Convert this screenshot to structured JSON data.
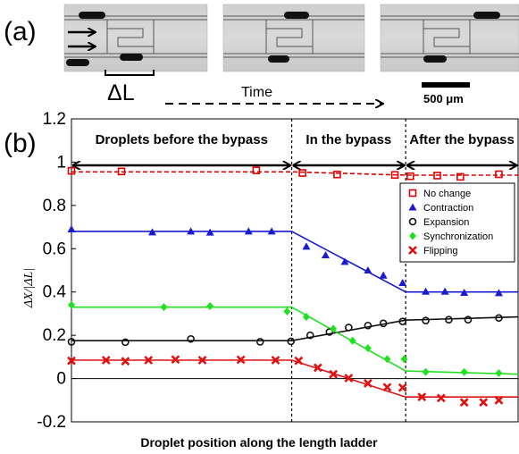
{
  "panel_a": {
    "label": "(a)",
    "delta_label": "ΔL",
    "time_label": "Time",
    "scalebar_label": "500 μm"
  },
  "panel_b": {
    "label": "(b)"
  },
  "chart_data": {
    "type": "scatter",
    "ylabel": "ΔX/|ΔL|",
    "xlabel": "Droplet position along the length  ladder",
    "ylim": [
      -0.2,
      1.2
    ],
    "yticks": [
      "1.2",
      "1",
      "0.8",
      "0.6",
      "0.4",
      "0.2",
      "0",
      "-0.2"
    ],
    "xlim": [
      0,
      580
    ],
    "regions": [
      {
        "label": "Droplets before the bypass",
        "x_start": 0,
        "x_end": 286
      },
      {
        "label": "In the bypass",
        "x_start": 286,
        "x_end": 434
      },
      {
        "label": "After the bypass",
        "x_start": 434,
        "x_end": 580
      }
    ],
    "series": [
      {
        "name": "No change",
        "color": "#e00000",
        "marker": "square",
        "line_dashed": true,
        "line": [
          [
            0,
            0.955
          ],
          [
            286,
            0.955
          ],
          [
            434,
            0.94
          ],
          [
            580,
            0.94
          ]
        ],
        "points": [
          [
            0,
            0.96
          ],
          [
            65,
            0.957
          ],
          [
            240,
            0.962
          ],
          [
            300,
            0.95
          ],
          [
            345,
            0.943
          ],
          [
            420,
            0.941
          ],
          [
            440,
            0.935
          ],
          [
            475,
            0.938
          ],
          [
            505,
            0.932
          ],
          [
            555,
            0.944
          ]
        ]
      },
      {
        "name": "Contraction",
        "color": "#1a1ad0",
        "marker": "triangle",
        "line_dashed": false,
        "line": [
          [
            0,
            0.68
          ],
          [
            286,
            0.68
          ],
          [
            434,
            0.4
          ],
          [
            580,
            0.4
          ]
        ],
        "points": [
          [
            0,
            0.69
          ],
          [
            105,
            0.676
          ],
          [
            155,
            0.68
          ],
          [
            180,
            0.675
          ],
          [
            230,
            0.68
          ],
          [
            260,
            0.68
          ],
          [
            305,
            0.61
          ],
          [
            330,
            0.57
          ],
          [
            355,
            0.54
          ],
          [
            385,
            0.5
          ],
          [
            405,
            0.476
          ],
          [
            430,
            0.442
          ],
          [
            460,
            0.402
          ],
          [
            485,
            0.402
          ],
          [
            510,
            0.397
          ],
          [
            555,
            0.395
          ]
        ]
      },
      {
        "name": "Expansion",
        "color": "#111111",
        "marker": "circle",
        "line_dashed": false,
        "line": [
          [
            0,
            0.175
          ],
          [
            286,
            0.175
          ],
          [
            434,
            0.27
          ],
          [
            580,
            0.285
          ]
        ],
        "points": [
          [
            0,
            0.17
          ],
          [
            70,
            0.168
          ],
          [
            155,
            0.183
          ],
          [
            245,
            0.17
          ],
          [
            285,
            0.172
          ],
          [
            310,
            0.2
          ],
          [
            335,
            0.215
          ],
          [
            360,
            0.236
          ],
          [
            385,
            0.245
          ],
          [
            405,
            0.255
          ],
          [
            430,
            0.264
          ],
          [
            460,
            0.268
          ],
          [
            490,
            0.272
          ],
          [
            515,
            0.272
          ],
          [
            555,
            0.28
          ]
        ]
      },
      {
        "name": "Synchronization",
        "color": "#20e020",
        "marker": "diamond",
        "line_dashed": false,
        "line": [
          [
            0,
            0.33
          ],
          [
            286,
            0.33
          ],
          [
            434,
            0.035
          ],
          [
            580,
            0.02
          ]
        ],
        "points": [
          [
            0,
            0.34
          ],
          [
            120,
            0.33
          ],
          [
            180,
            0.335
          ],
          [
            280,
            0.31
          ],
          [
            305,
            0.285
          ],
          [
            340,
            0.23
          ],
          [
            365,
            0.175
          ],
          [
            385,
            0.14
          ],
          [
            410,
            0.09
          ],
          [
            432,
            0.09
          ],
          [
            460,
            0.03
          ],
          [
            510,
            0.03
          ],
          [
            555,
            0.025
          ]
        ]
      },
      {
        "name": "Flipping",
        "color": "#e01010",
        "marker": "x",
        "line_dashed": false,
        "line": [
          [
            0,
            0.085
          ],
          [
            286,
            0.085
          ],
          [
            434,
            -0.085
          ],
          [
            580,
            -0.085
          ]
        ],
        "points": [
          [
            0,
            0.082
          ],
          [
            45,
            0.085
          ],
          [
            70,
            0.08
          ],
          [
            100,
            0.085
          ],
          [
            135,
            0.088
          ],
          [
            170,
            0.085
          ],
          [
            220,
            0.087
          ],
          [
            265,
            0.085
          ],
          [
            295,
            0.082
          ],
          [
            320,
            0.05
          ],
          [
            340,
            0.02
          ],
          [
            360,
            0.002
          ],
          [
            385,
            -0.022
          ],
          [
            410,
            -0.04
          ],
          [
            430,
            -0.042
          ],
          [
            455,
            -0.085
          ],
          [
            480,
            -0.09
          ],
          [
            510,
            -0.11
          ],
          [
            535,
            -0.11
          ],
          [
            555,
            -0.1
          ]
        ]
      }
    ]
  }
}
